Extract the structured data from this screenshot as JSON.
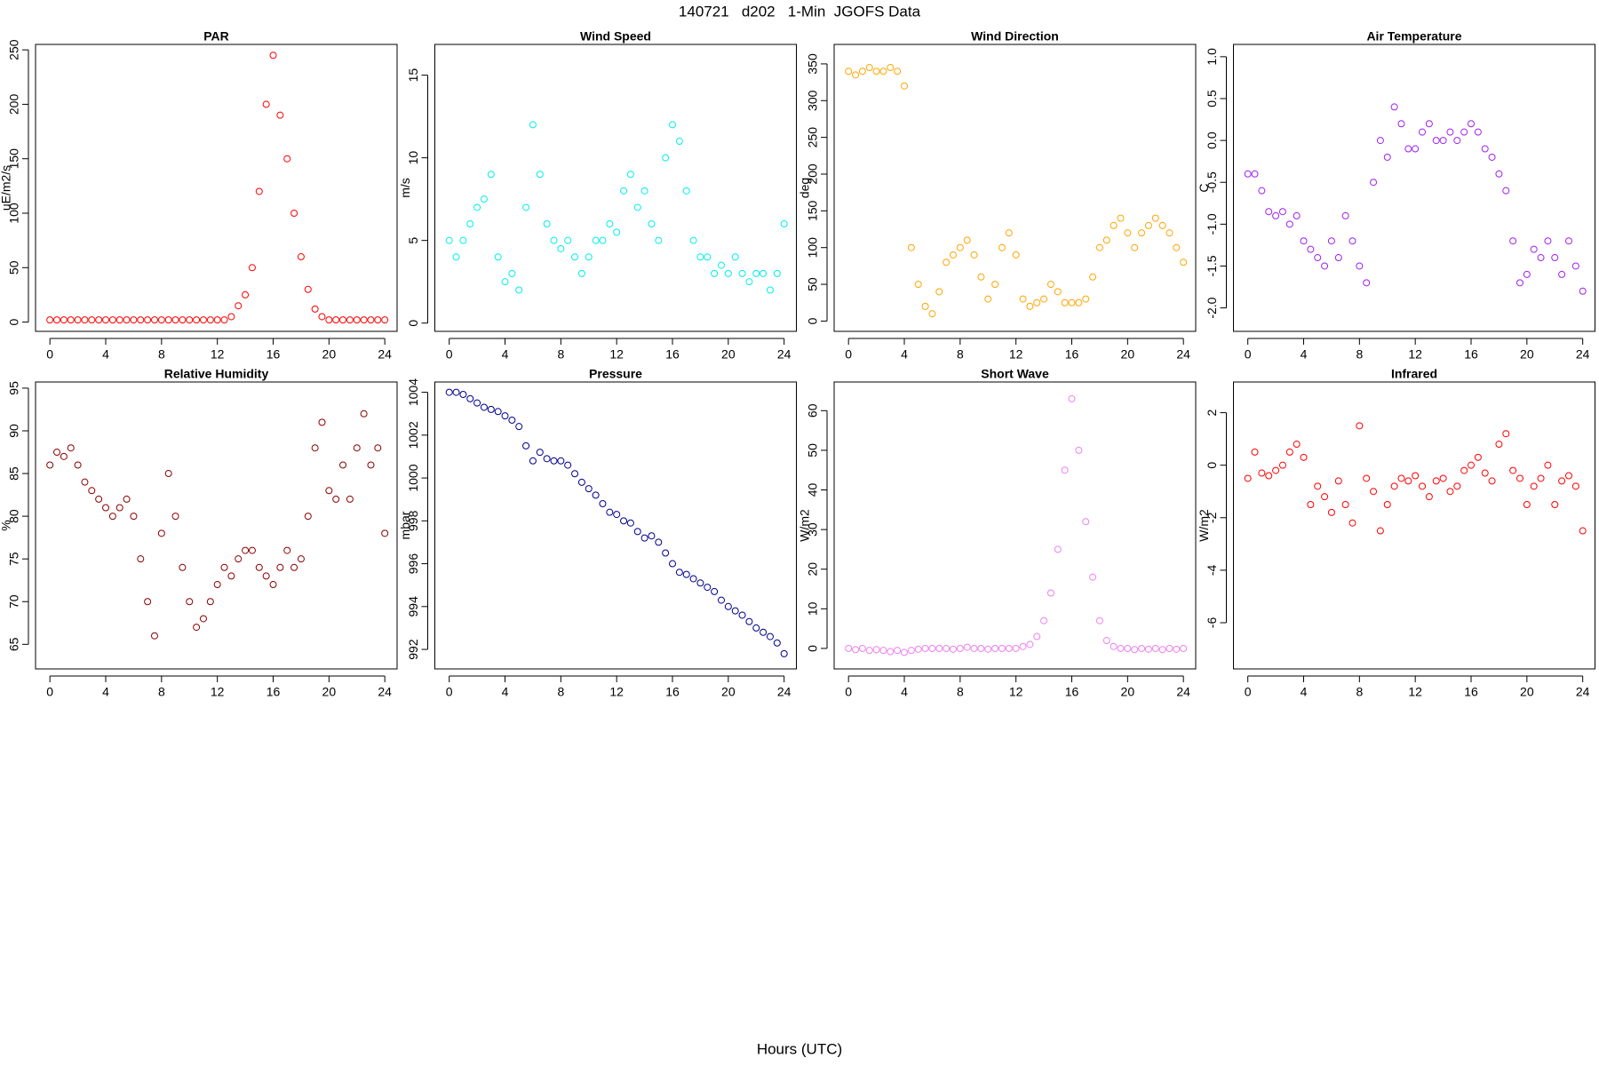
{
  "title": "140721   d202   1-Min  JGOFS Data",
  "xlabel": "Hours (UTC)",
  "chart_data": [
    {
      "type": "scatter",
      "title": "PAR",
      "ylabel": "uE/m2/s",
      "color": "#ff0000",
      "x": [
        0,
        0.5,
        1,
        1.5,
        2,
        2.5,
        3,
        3.5,
        4,
        4.5,
        5,
        5.5,
        6,
        6.5,
        7,
        7.5,
        8,
        8.5,
        9,
        9.5,
        10,
        10.5,
        11,
        11.5,
        12,
        12.5,
        13,
        13.5,
        14,
        14.5,
        15,
        15.5,
        16,
        16.5,
        17,
        17.5,
        18,
        18.5,
        19,
        19.5,
        20,
        20.5,
        21,
        21.5,
        22,
        22.5,
        23,
        23.5,
        24
      ],
      "values": [
        2,
        2,
        2,
        2,
        2,
        2,
        2,
        2,
        2,
        2,
        2,
        2,
        2,
        2,
        2,
        2,
        2,
        2,
        2,
        2,
        2,
        2,
        2,
        2,
        2,
        2,
        5,
        15,
        25,
        50,
        120,
        200,
        245,
        190,
        150,
        100,
        60,
        30,
        12,
        5,
        2,
        2,
        2,
        2,
        2,
        2,
        2,
        2,
        2
      ],
      "xlim": [
        -1.03,
        24.88
      ],
      "ylim": [
        -8.5,
        255
      ],
      "xticks": [
        0,
        4,
        8,
        12,
        16,
        20,
        24
      ],
      "yticks": [
        0,
        50,
        100,
        150,
        200,
        250
      ]
    },
    {
      "type": "scatter",
      "title": "Wind Speed",
      "ylabel": "m/s",
      "color": "#00eeee",
      "x": [
        0,
        0.5,
        1,
        1.5,
        2,
        2.5,
        3,
        3.5,
        4,
        4.5,
        5,
        5.5,
        6,
        6.5,
        7,
        7.5,
        8,
        8.5,
        9,
        9.5,
        10,
        10.5,
        11,
        11.5,
        12,
        12.5,
        13,
        13.5,
        14,
        14.5,
        15,
        15.5,
        16,
        16.5,
        17,
        17.5,
        18,
        18.5,
        19,
        19.5,
        20,
        20.5,
        21,
        21.5,
        22,
        22.5,
        23,
        23.5,
        24
      ],
      "values": [
        5,
        4,
        5,
        6,
        7,
        7.5,
        9,
        4,
        2.5,
        3,
        2,
        7,
        12,
        9,
        6,
        5,
        4.5,
        5,
        4,
        3,
        4,
        5,
        5,
        6,
        5.5,
        8,
        9,
        7,
        8,
        6,
        5,
        10,
        12,
        11,
        8,
        5,
        4,
        4,
        3,
        3.5,
        3,
        4,
        3,
        2.5,
        3,
        3,
        2,
        3,
        6
      ],
      "xlim": [
        -1.03,
        24.88
      ],
      "ylim": [
        -0.5,
        16.86
      ],
      "xticks": [
        0,
        4,
        8,
        12,
        16,
        20,
        24
      ],
      "yticks": [
        0,
        5,
        10,
        15
      ]
    },
    {
      "type": "scatter",
      "title": "Wind Direction",
      "ylabel": "deg",
      "color": "#ffa500",
      "x": [
        0,
        0.5,
        1,
        1.5,
        2,
        2.5,
        3,
        3.5,
        4,
        4.5,
        5,
        5.5,
        6,
        6.5,
        7,
        7.5,
        8,
        8.5,
        9,
        9.5,
        10,
        10.5,
        11,
        11.5,
        12,
        12.5,
        13,
        13.5,
        14,
        14.5,
        15,
        15.5,
        16,
        16.5,
        17,
        17.5,
        18,
        18.5,
        19,
        19.5,
        20,
        20.5,
        21,
        21.5,
        22,
        22.5,
        23,
        23.5,
        24
      ],
      "values": [
        340,
        335,
        340,
        345,
        340,
        340,
        345,
        340,
        320,
        100,
        50,
        20,
        10,
        40,
        80,
        90,
        100,
        110,
        90,
        60,
        30,
        50,
        100,
        120,
        90,
        30,
        20,
        25,
        30,
        50,
        40,
        25,
        25,
        25,
        30,
        60,
        100,
        110,
        130,
        140,
        120,
        100,
        120,
        130,
        140,
        130,
        120,
        100,
        80
      ],
      "xlim": [
        -1.03,
        24.88
      ],
      "ylim": [
        -14,
        376.5
      ],
      "xticks": [
        0,
        4,
        8,
        12,
        16,
        20,
        24
      ],
      "yticks": [
        0,
        50,
        100,
        150,
        200,
        250,
        300,
        350
      ]
    },
    {
      "type": "scatter",
      "title": "Air Temperature",
      "ylabel": "C",
      "color": "#a020f0",
      "x": [
        0,
        0.5,
        1,
        1.5,
        2,
        2.5,
        3,
        3.5,
        4,
        4.5,
        5,
        5.5,
        6,
        6.5,
        7,
        7.5,
        8,
        8.5,
        9,
        9.5,
        10,
        10.5,
        11,
        11.5,
        12,
        12.5,
        13,
        13.5,
        14,
        14.5,
        15,
        15.5,
        16,
        16.5,
        17,
        17.5,
        18,
        18.5,
        19,
        19.5,
        20,
        20.5,
        21,
        21.5,
        22,
        22.5,
        23,
        23.5,
        24
      ],
      "values": [
        -0.4,
        -0.4,
        -0.6,
        -0.85,
        -0.9,
        -0.85,
        -1.0,
        -0.9,
        -1.2,
        -1.3,
        -1.4,
        -1.5,
        -1.2,
        -1.4,
        -0.9,
        -1.2,
        -1.5,
        -1.7,
        -0.5,
        0,
        -0.2,
        0.4,
        0.2,
        -0.1,
        -0.1,
        0.1,
        0.2,
        0,
        0,
        0.1,
        0,
        0.1,
        0.2,
        0.1,
        -0.1,
        -0.2,
        -0.4,
        -0.6,
        -1.2,
        -1.7,
        -1.6,
        -1.3,
        -1.4,
        -1.2,
        -1.4,
        -1.6,
        -1.2,
        -1.5,
        -1.8
      ],
      "xlim": [
        -1.03,
        24.88
      ],
      "ylim": [
        -2.28,
        1.147
      ],
      "xticks": [
        0,
        4,
        8,
        12,
        16,
        20,
        24
      ],
      "yticks": [
        {
          "value": 1,
          "label": "1.0"
        },
        0.5,
        {
          "value": 0,
          "label": "0.0"
        },
        -0.5,
        {
          "value": -1,
          "label": "-1.0"
        },
        -1.5,
        {
          "value": -2,
          "label": "-2.0"
        }
      ]
    },
    {
      "type": "scatter",
      "title": "Relative Humidity",
      "ylabel": "%",
      "color": "#8b0000",
      "x": [
        0,
        0.5,
        1,
        1.5,
        2,
        2.5,
        3,
        3.5,
        4,
        4.5,
        5,
        5.5,
        6,
        6.5,
        7,
        7.5,
        8,
        8.5,
        9,
        9.5,
        10,
        10.5,
        11,
        11.5,
        12,
        12.5,
        13,
        13.5,
        14,
        14.5,
        15,
        15.5,
        16,
        16.5,
        17,
        17.5,
        18,
        18.5,
        19,
        19.5,
        20,
        20.5,
        21,
        21.5,
        22,
        22.5,
        23,
        23.5,
        24
      ],
      "values": [
        86,
        87.5,
        87,
        88,
        86,
        84,
        83,
        82,
        81,
        80,
        81,
        82,
        80,
        75,
        70,
        66,
        78,
        85,
        80,
        74,
        70,
        67,
        68,
        70,
        72,
        74,
        73,
        75,
        76,
        76,
        74,
        73,
        72,
        74,
        76,
        74,
        75,
        80,
        88,
        91,
        83,
        82,
        86,
        82,
        88,
        92,
        86,
        88,
        78
      ],
      "xlim": [
        -1.03,
        24.88
      ],
      "ylim": [
        62.12,
        95.72
      ],
      "xticks": [
        0,
        4,
        8,
        12,
        16,
        20,
        24
      ],
      "yticks": [
        65,
        70,
        75,
        80,
        85,
        90,
        95
      ]
    },
    {
      "type": "scatter",
      "title": "Pressure",
      "ylabel": "mbar",
      "color": "#00008b",
      "x": [
        0,
        0.5,
        1,
        1.5,
        2,
        2.5,
        3,
        3.5,
        4,
        4.5,
        5,
        5.5,
        6,
        6.5,
        7,
        7.5,
        8,
        8.5,
        9,
        9.5,
        10,
        10.5,
        11,
        11.5,
        12,
        12.5,
        13,
        13.5,
        14,
        14.5,
        15,
        15.5,
        16,
        16.5,
        17,
        17.5,
        18,
        18.5,
        19,
        19.5,
        20,
        20.5,
        21,
        21.5,
        22,
        22.5,
        23,
        23.5,
        24
      ],
      "values": [
        1004,
        1004,
        1003.9,
        1003.7,
        1003.5,
        1003.3,
        1003.2,
        1003.1,
        1002.9,
        1002.7,
        1002.4,
        1001.5,
        1000.8,
        1001.2,
        1000.9,
        1000.8,
        1000.8,
        1000.6,
        1000.2,
        999.8,
        999.5,
        999.2,
        998.8,
        998.4,
        998.3,
        998,
        997.9,
        997.5,
        997.2,
        997.3,
        997,
        996.5,
        996,
        995.6,
        995.5,
        995.3,
        995.1,
        994.9,
        994.7,
        994.3,
        994,
        993.8,
        993.6,
        993.3,
        993,
        992.8,
        992.6,
        992.3,
        991.8
      ],
      "xlim": [
        -1.03,
        24.88
      ],
      "ylim": [
        991.09,
        1004.48
      ],
      "xticks": [
        0,
        4,
        8,
        12,
        16,
        20,
        24
      ],
      "yticks": [
        992,
        994,
        996,
        998,
        1000,
        1002,
        1004
      ]
    },
    {
      "type": "scatter",
      "title": "Short Wave",
      "ylabel": "W/m2",
      "color": "#ee82ee",
      "x": [
        0,
        0.5,
        1,
        1.5,
        2,
        2.5,
        3,
        3.5,
        4,
        4.5,
        5,
        5.5,
        6,
        6.5,
        7,
        7.5,
        8,
        8.5,
        9,
        9.5,
        10,
        10.5,
        11,
        11.5,
        12,
        12.5,
        13,
        13.5,
        14,
        14.5,
        15,
        15.5,
        16,
        16.5,
        17,
        17.5,
        18,
        18.5,
        19,
        19.5,
        20,
        20.5,
        21,
        21.5,
        22,
        22.5,
        23,
        23.5,
        24
      ],
      "values": [
        0,
        -0.3,
        0,
        -0.5,
        -0.3,
        -0.5,
        -0.8,
        -0.5,
        -1,
        -0.5,
        -0.2,
        0,
        0,
        0,
        0,
        -0.2,
        0,
        0.3,
        0,
        0,
        -0.2,
        0,
        0,
        0,
        0,
        0.5,
        1,
        3,
        7,
        14,
        25,
        45,
        63,
        50,
        32,
        18,
        7,
        2,
        0.5,
        0,
        0,
        -0.3,
        0,
        -0.2,
        0,
        -0.3,
        0,
        -0.2,
        0
      ],
      "xlim": [
        -1.03,
        24.88
      ],
      "ylim": [
        -5.17,
        67.24
      ],
      "xticks": [
        0,
        4,
        8,
        12,
        16,
        20,
        24
      ],
      "yticks": [
        0,
        10,
        20,
        30,
        40,
        50,
        60
      ]
    },
    {
      "type": "scatter",
      "title": "Infrared",
      "ylabel": "W/m2",
      "color": "#ff0000",
      "x": [
        0,
        0.5,
        1,
        1.5,
        2,
        2.5,
        3,
        3.5,
        4,
        4.5,
        5,
        5.5,
        6,
        6.5,
        7,
        7.5,
        8,
        8.5,
        9,
        9.5,
        10,
        10.5,
        11,
        11.5,
        12,
        12.5,
        13,
        13.5,
        14,
        14.5,
        15,
        15.5,
        16,
        16.5,
        17,
        17.5,
        18,
        18.5,
        19,
        19.5,
        20,
        20.5,
        21,
        21.5,
        22,
        22.5,
        23,
        23.5,
        24
      ],
      "values": [
        -0.5,
        0.5,
        -0.3,
        -0.4,
        -0.2,
        0,
        0.5,
        0.8,
        0.3,
        -1.5,
        -0.8,
        -1.2,
        -1.8,
        -0.6,
        -1.5,
        -2.2,
        1.5,
        -0.5,
        -1,
        -2.5,
        -1.5,
        -0.8,
        -0.5,
        -0.6,
        -0.4,
        -0.8,
        -1.2,
        -0.6,
        -0.5,
        -1,
        -0.8,
        -0.2,
        0,
        0.3,
        -0.3,
        -0.6,
        0.8,
        1.2,
        -0.2,
        -0.5,
        -1.5,
        -0.8,
        -0.5,
        0,
        -1.5,
        -0.6,
        -0.4,
        -0.8,
        -2.5
      ],
      "xlim": [
        -1.03,
        24.88
      ],
      "ylim": [
        -7.76,
        3.17
      ],
      "xticks": [
        0,
        4,
        8,
        12,
        16,
        20,
        24
      ],
      "yticks": [
        2,
        0,
        -2,
        -4,
        -6
      ]
    }
  ]
}
